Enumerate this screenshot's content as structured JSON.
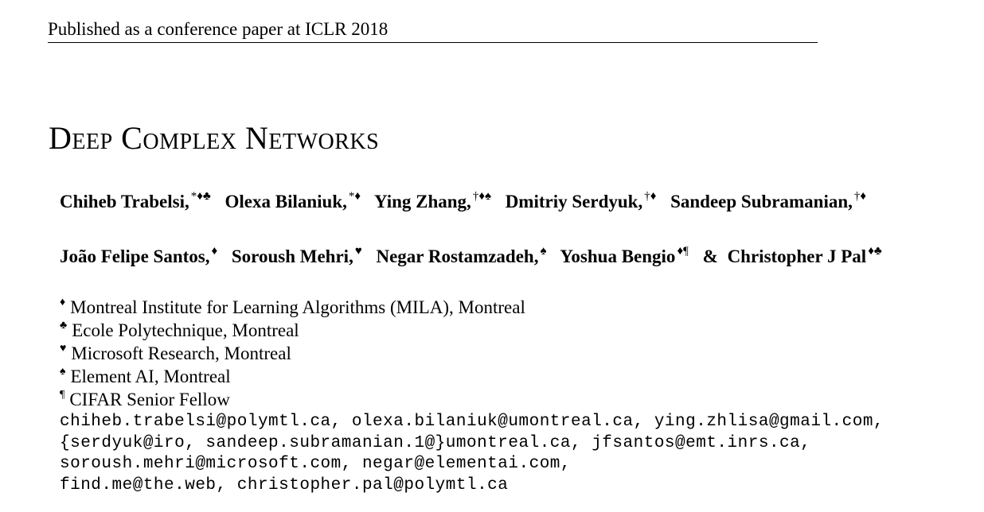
{
  "header": {
    "text": "Published as a conference paper at ICLR 2018"
  },
  "title": "Deep Complex Networks",
  "authors_row1": [
    {
      "name": "Chiheb Trabelsi,",
      "marks": "*♦♣"
    },
    {
      "name": "Olexa Bilaniuk,",
      "marks": "*♦"
    },
    {
      "name": "Ying Zhang,",
      "marks": "†♦♠"
    },
    {
      "name": "Dmitriy Serdyuk,",
      "marks": "†♦"
    },
    {
      "name": "Sandeep Subramanian,",
      "marks": "†♦"
    }
  ],
  "authors_row2": [
    {
      "name": "João Felipe Santos,",
      "marks": "♦"
    },
    {
      "name": "Soroush Mehri,",
      "marks": "♥"
    },
    {
      "name": "Negar Rostamzadeh,",
      "marks": "♠"
    },
    {
      "name": "Yoshua Bengio",
      "marks": "♦¶"
    },
    {
      "name": "Christopher J Pal",
      "marks": "♦♣"
    }
  ],
  "amp": "&",
  "affiliations": [
    {
      "symbol": "♦",
      "text": "Montreal Institute for Learning Algorithms (MILA), Montreal"
    },
    {
      "symbol": "♣",
      "text": "Ecole Polytechnique, Montreal"
    },
    {
      "symbol": "♥",
      "text": "Microsoft Research, Montreal"
    },
    {
      "symbol": "♠",
      "text": "Element AI, Montreal"
    },
    {
      "symbol": "¶",
      "text": "CIFAR Senior Fellow"
    }
  ],
  "emails": [
    "chiheb.trabelsi@polymtl.ca, olexa.bilaniuk@umontreal.ca, ying.zhlisa@gmail.com,",
    "{serdyuk@iro, sandeep.subramanian.1@}umontreal.ca, jfsantos@emt.inrs.ca,",
    "soroush.mehri@microsoft.com, negar@elementai.com,",
    "find.me@the.web, christopher.pal@polymtl.ca"
  ]
}
